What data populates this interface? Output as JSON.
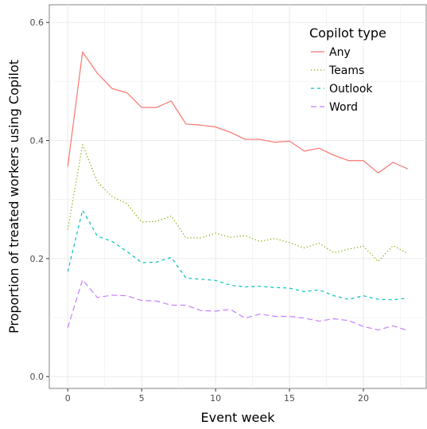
{
  "chart_data": {
    "type": "line",
    "xlabel": "Event week",
    "ylabel": "Proportion of treated workers using Copilot",
    "xlim": [
      -1.25,
      24.25
    ],
    "ylim": [
      -0.02,
      0.63
    ],
    "x_ticks": [
      0,
      5,
      10,
      15,
      20
    ],
    "y_ticks": [
      0.0,
      0.2,
      0.4,
      0.6
    ],
    "x_tick_labels": [
      "0",
      "5",
      "10",
      "15",
      "20"
    ],
    "y_tick_labels": [
      "0.0",
      "0.2",
      "0.4",
      "0.6"
    ],
    "grid": true,
    "background": "#ffffff",
    "grid_color": "#ebebeb",
    "legend": {
      "title": "Copilot type",
      "placement": "top-right, inside plot"
    },
    "x": [
      0,
      1,
      2,
      3,
      4,
      5,
      6,
      7,
      8,
      9,
      10,
      11,
      12,
      13,
      14,
      15,
      16,
      17,
      18,
      19,
      20,
      21,
      22,
      23
    ],
    "series": [
      {
        "name": "Any",
        "color": "#F8766D",
        "dash": "solid",
        "values": [
          0.356,
          0.55,
          0.514,
          0.488,
          0.481,
          0.456,
          0.456,
          0.467,
          0.428,
          0.426,
          0.423,
          0.414,
          0.402,
          0.402,
          0.397,
          0.399,
          0.382,
          0.387,
          0.375,
          0.366,
          0.366,
          0.345,
          0.363,
          0.352
        ]
      },
      {
        "name": "Teams",
        "color": "#7CAE00",
        "dash": "dotted",
        "values": [
          0.249,
          0.393,
          0.33,
          0.305,
          0.293,
          0.262,
          0.263,
          0.272,
          0.235,
          0.235,
          0.243,
          0.236,
          0.239,
          0.229,
          0.234,
          0.227,
          0.218,
          0.226,
          0.21,
          0.216,
          0.221,
          0.195,
          0.222,
          0.209
        ]
      },
      {
        "name": "Outlook",
        "color": "#00BFC4",
        "dash": "dashed",
        "values": [
          0.178,
          0.282,
          0.238,
          0.229,
          0.212,
          0.193,
          0.194,
          0.202,
          0.167,
          0.165,
          0.163,
          0.155,
          0.152,
          0.153,
          0.151,
          0.15,
          0.144,
          0.147,
          0.137,
          0.131,
          0.137,
          0.131,
          0.13,
          0.133
        ]
      },
      {
        "name": "Word",
        "color": "#C77CFF",
        "dash": "longdash",
        "values": [
          0.083,
          0.164,
          0.134,
          0.138,
          0.137,
          0.129,
          0.128,
          0.121,
          0.121,
          0.112,
          0.111,
          0.114,
          0.099,
          0.106,
          0.102,
          0.102,
          0.099,
          0.094,
          0.098,
          0.095,
          0.085,
          0.079,
          0.086,
          0.078
        ]
      }
    ]
  }
}
